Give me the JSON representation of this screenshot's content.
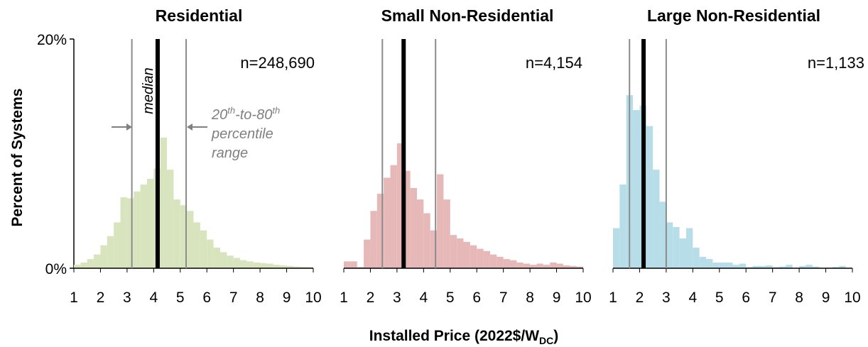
{
  "y_axis": {
    "label": "Percent of Systems",
    "tick_top": "20%",
    "tick_bottom": "0%",
    "range": [
      0,
      20
    ]
  },
  "x_axis": {
    "label_main": "Installed Price (2022$/W",
    "label_sub": "DC",
    "label_close": ")",
    "ticks": [
      "1",
      "2",
      "3",
      "4",
      "5",
      "6",
      "7",
      "8",
      "9",
      "10"
    ],
    "range": [
      1,
      10
    ]
  },
  "annotations": {
    "median": "median",
    "pct_line1_a": "20",
    "pct_line1_sup1": "th",
    "pct_line1_b": "-to-80",
    "pct_line1_sup2": "th",
    "pct_line2": "percentile",
    "pct_line3": "range"
  },
  "colors": {
    "residential": "#d7e4bd",
    "small": "#e6b9b8",
    "large": "#b7dde8",
    "median": "#000000",
    "percentile": "#8c8c8c",
    "annotation": "#808080"
  },
  "chart_data": [
    {
      "type": "bar",
      "title": "Residential",
      "n_label": "n=248,690",
      "bin_width": 0.25,
      "bin_start": 1.0,
      "values": [
        0.3,
        0.5,
        0.8,
        1.2,
        2.0,
        2.8,
        4.0,
        6.2,
        6.1,
        6.7,
        7.3,
        7.8,
        8.7,
        11.4,
        8.6,
        6.0,
        5.5,
        5.0,
        4.0,
        3.3,
        2.5,
        1.8,
        1.4,
        1.1,
        0.9,
        0.7,
        0.6,
        0.5,
        0.45,
        0.4,
        0.3,
        0.25,
        0.2,
        0.15,
        0.12,
        0.1
      ],
      "median": 4.15,
      "p20": 3.18,
      "p80": 5.22,
      "ylim": [
        0,
        20
      ]
    },
    {
      "type": "bar",
      "title": "Small Non-Residential",
      "n_label": "n=4,154",
      "bin_width": 0.25,
      "bin_start": 1.0,
      "values": [
        0.6,
        0.6,
        0.1,
        2.5,
        5.0,
        6.5,
        7.9,
        9.0,
        10.9,
        8.5,
        7.0,
        6.0,
        4.8,
        3.3,
        8.2,
        6.0,
        2.9,
        2.6,
        2.3,
        2.0,
        1.7,
        1.5,
        1.2,
        1.0,
        0.8,
        0.7,
        0.5,
        0.4,
        0.3,
        0.4,
        0.3,
        0.5,
        0.4,
        0.25,
        0.2,
        0.15
      ],
      "median": 3.25,
      "p20": 2.45,
      "p80": 4.45,
      "ylim": [
        0,
        20
      ]
    },
    {
      "type": "bar",
      "title": "Large Non-Residential",
      "n_label": "n=1,133",
      "bin_width": 0.25,
      "bin_start": 1.0,
      "values": [
        3.5,
        7.3,
        15.1,
        13.8,
        14.2,
        12.4,
        8.6,
        5.8,
        4.0,
        3.6,
        2.6,
        3.5,
        1.8,
        1.0,
        0.8,
        0.5,
        0.5,
        0.5,
        0.3,
        0.4,
        0.1,
        0.2,
        0.2,
        0.25,
        0.1,
        0.15,
        0.3,
        0.0,
        0.2,
        0.3,
        0.15,
        0.0,
        0.0,
        0.1,
        0.2,
        0.0
      ],
      "median": 2.15,
      "p20": 1.62,
      "p80": 3.0,
      "ylim": [
        0,
        20
      ]
    }
  ]
}
